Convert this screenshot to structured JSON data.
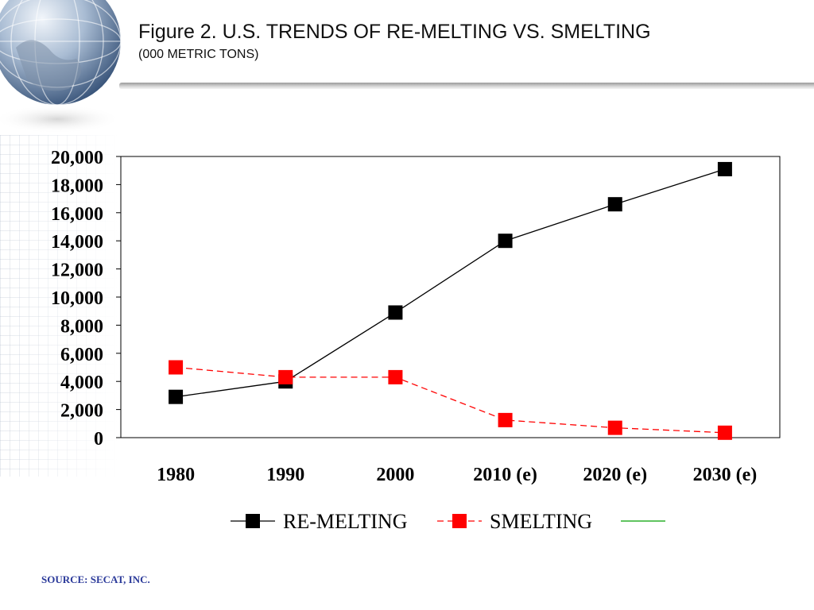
{
  "slide": {
    "title": "Figure 2. U.S. TRENDS OF RE-MELTING VS. SMELTING",
    "subtitle": "(000 METRIC TONS)",
    "source": "SOURCE: SECAT, INC.",
    "decoration_icon": "globe-icon"
  },
  "chart_data": {
    "type": "line",
    "title": "Figure 2. U.S. TRENDS OF RE-MELTING VS. SMELTING",
    "subtitle": "(000 METRIC TONS)",
    "categories": [
      "1980",
      "1990",
      "2000",
      "2010 (e)",
      "2020 (e)",
      "2030 (e)"
    ],
    "ylim": [
      0,
      20000
    ],
    "yticks": [
      0,
      2000,
      4000,
      6000,
      8000,
      10000,
      12000,
      14000,
      16000,
      18000,
      20000
    ],
    "ytick_labels": [
      "0",
      "2,000",
      "4,000",
      "6,000",
      "8,000",
      "10,000",
      "12,000",
      "14,000",
      "16,000",
      "18,000",
      "20,000"
    ],
    "grid": false,
    "legend_placement": "bottom",
    "series": [
      {
        "name": "RE-MELTING",
        "values": [
          2900,
          4000,
          8900,
          14000,
          16600,
          19100
        ],
        "color": "#000000",
        "dash": "solid",
        "marker": "square"
      },
      {
        "name": "SMELTING",
        "values": [
          5000,
          4300,
          4300,
          1250,
          700,
          350
        ],
        "color": "#ff0000",
        "dash": "dashed",
        "marker": "square"
      }
    ],
    "legend_extra": {
      "color": "#00a000"
    }
  }
}
